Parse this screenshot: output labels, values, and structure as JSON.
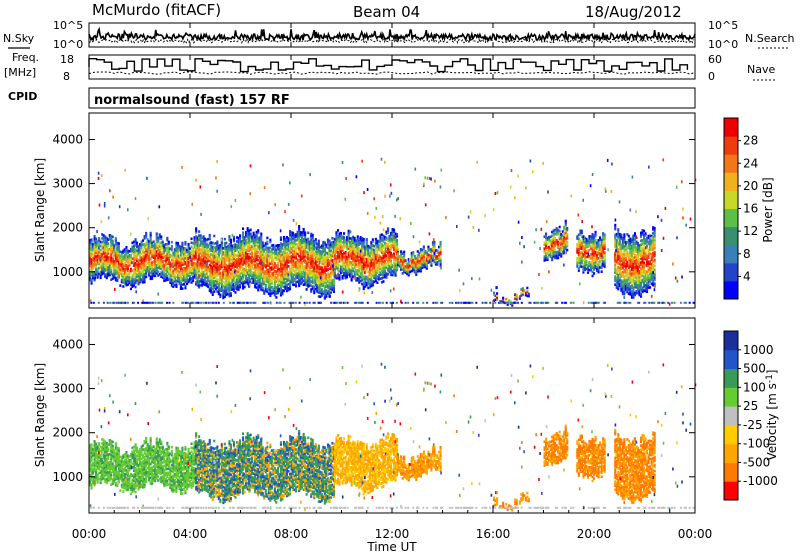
{
  "header": {
    "station": "McMurdo (fitACF)",
    "beam": "Beam 04",
    "date": "18/Aug/2012"
  },
  "strip": {
    "nsky_label": "N.Sky",
    "nsearch_label": "N.Search",
    "nsky_ticks": [
      "10^5",
      "10^0"
    ],
    "nsearch_ticks": [
      "10^5",
      "10^0"
    ],
    "freq_label_1": "Freq.",
    "freq_label_2": "[MHz]",
    "freq_ticks": [
      "18",
      "8"
    ],
    "nave_label": "Nave",
    "nave_ticks": [
      "60",
      "0"
    ],
    "cpid_label": "CPID",
    "cpid_text": "normalsound (fast) 157 RF"
  },
  "colors": {
    "power": [
      "#0000ff",
      "#2244cc",
      "#3b7fb8",
      "#3a8f6e",
      "#5bbf4a",
      "#c8d828",
      "#f0b020",
      "#f07818",
      "#f03c0c",
      "#ee0000"
    ],
    "velocity": [
      "#ff0000",
      "#ff7a00",
      "#ffa500",
      "#ffcc00",
      "#c0c0c0",
      "#66cc33",
      "#3a9a5a",
      "#2255cc",
      "#1a2f9a"
    ]
  },
  "chart_data": [
    {
      "type": "heatmap",
      "ylabel": "Slant Range [km]",
      "yticks": [
        "4000",
        "3000",
        "2000",
        "1000"
      ],
      "ytick_values": [
        4000,
        3000,
        2000,
        1000
      ],
      "ylim": [
        180,
        4600
      ],
      "xlim": [
        0,
        24
      ],
      "colorbar_label": "Power [dB]",
      "colorbar_ticks": [
        "28",
        "24",
        "20",
        "16",
        "12",
        "8",
        "4"
      ],
      "colorbar_range": [
        0,
        32
      ],
      "echo_bands": [
        {
          "t": [
            0.0,
            4.2
          ],
          "r": [
            700,
            1800
          ]
        },
        {
          "t": [
            4.2,
            9.7
          ],
          "r": [
            500,
            1900
          ]
        },
        {
          "t": [
            9.7,
            12.2
          ],
          "r": [
            700,
            1900
          ]
        },
        {
          "t": [
            12.2,
            13.9
          ],
          "r": [
            1000,
            1600
          ]
        },
        {
          "t": [
            16.0,
            17.4
          ],
          "r": [
            300,
            600
          ]
        },
        {
          "t": [
            18.0,
            18.9
          ],
          "r": [
            1300,
            2100
          ]
        },
        {
          "t": [
            19.3,
            20.4
          ],
          "r": [
            1000,
            2000
          ]
        },
        {
          "t": [
            20.8,
            22.4
          ],
          "r": [
            500,
            2000
          ]
        }
      ]
    },
    {
      "type": "heatmap",
      "ylabel": "Slant Range [km]",
      "yticks": [
        "4000",
        "3000",
        "2000",
        "1000"
      ],
      "ytick_values": [
        4000,
        3000,
        2000,
        1000
      ],
      "ylim": [
        180,
        4600
      ],
      "xlim": [
        0,
        24
      ],
      "colorbar_label": "Velocity [m s^-1]",
      "colorbar_ticks": [
        "1000",
        "500",
        "100",
        "25",
        "-25",
        "-100",
        "-500",
        "-1000"
      ],
      "echo_bands": [
        {
          "t": [
            0.0,
            4.2
          ],
          "r": [
            700,
            1800
          ]
        },
        {
          "t": [
            4.2,
            9.7
          ],
          "r": [
            500,
            1900
          ]
        },
        {
          "t": [
            9.7,
            12.2
          ],
          "r": [
            700,
            1900
          ]
        },
        {
          "t": [
            16.0,
            17.4
          ],
          "r": [
            300,
            600
          ]
        },
        {
          "t": [
            19.3,
            20.4
          ],
          "r": [
            1000,
            2000
          ]
        },
        {
          "t": [
            20.8,
            22.4
          ],
          "r": [
            500,
            2000
          ]
        }
      ]
    }
  ],
  "xaxis": {
    "label": "Time UT",
    "ticks": [
      "00:00",
      "04:00",
      "08:00",
      "12:00",
      "16:00",
      "20:00",
      "00:00"
    ],
    "tick_hours": [
      0,
      4,
      8,
      12,
      16,
      20,
      24
    ]
  }
}
